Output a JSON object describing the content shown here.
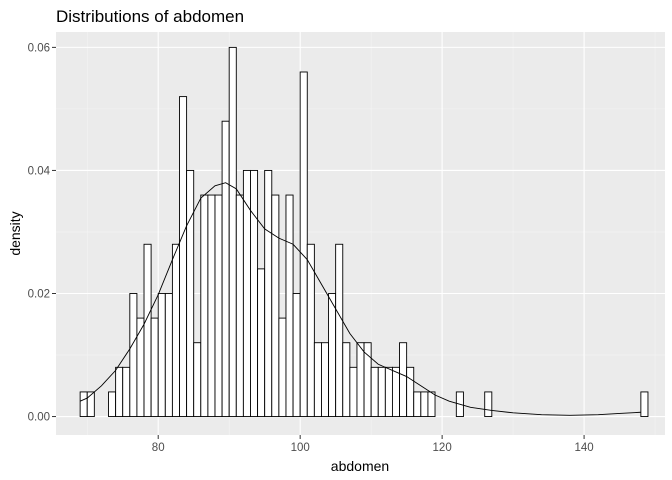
{
  "chart_data": {
    "type": "bar",
    "title": "Distributions of abdomen",
    "xlabel": "abdomen",
    "ylabel": "density",
    "xlim": [
      65.6,
      151.4
    ],
    "ylim": [
      -0.003,
      0.0625
    ],
    "x_ticks": [
      80,
      100,
      120,
      140
    ],
    "x_tick_labels": [
      "80",
      "100",
      "120",
      "140"
    ],
    "y_ticks": [
      0.0,
      0.02,
      0.04,
      0.06
    ],
    "y_tick_labels": [
      "0.00",
      "0.02",
      "0.04",
      "0.06"
    ],
    "binwidth": 1,
    "bin_edges_start": 69,
    "histogram": {
      "name": "density histogram",
      "bin_starts": [
        69,
        70,
        73,
        74,
        75,
        76,
        77,
        78,
        79,
        80,
        81,
        82,
        83,
        84,
        85,
        86,
        87,
        88,
        89,
        90,
        91,
        92,
        93,
        94,
        95,
        96,
        97,
        98,
        99,
        100,
        101,
        102,
        103,
        104,
        105,
        106,
        107,
        108,
        109,
        110,
        111,
        112,
        113,
        114,
        115,
        116,
        117,
        118,
        122,
        126,
        148
      ],
      "values": [
        0.004,
        0.004,
        0.004,
        0.008,
        0.008,
        0.02,
        0.016,
        0.028,
        0.016,
        0.02,
        0.02,
        0.028,
        0.052,
        0.04,
        0.012,
        0.036,
        0.036,
        0.036,
        0.048,
        0.06,
        0.036,
        0.04,
        0.04,
        0.024,
        0.04,
        0.036,
        0.016,
        0.036,
        0.02,
        0.056,
        0.028,
        0.012,
        0.012,
        0.02,
        0.028,
        0.012,
        0.008,
        0.012,
        0.012,
        0.008,
        0.008,
        0.008,
        0.008,
        0.012,
        0.008,
        0.004,
        0.004,
        0.004,
        0.004,
        0.004,
        0.004
      ]
    },
    "density_curve": {
      "name": "kernel density",
      "x": [
        69,
        70,
        72,
        74,
        76,
        78,
        80,
        82,
        84,
        86,
        88,
        89.5,
        91,
        93,
        95,
        97,
        99,
        101,
        103,
        105,
        107,
        109,
        111,
        113,
        115,
        117,
        119,
        121,
        124,
        127,
        130,
        134,
        138,
        142,
        145,
        148
      ],
      "y": [
        0.0025,
        0.003,
        0.005,
        0.0075,
        0.011,
        0.015,
        0.0198,
        0.0255,
        0.031,
        0.0355,
        0.0375,
        0.038,
        0.037,
        0.0335,
        0.0305,
        0.029,
        0.028,
        0.0255,
        0.0215,
        0.0175,
        0.0135,
        0.0105,
        0.0085,
        0.0075,
        0.0065,
        0.005,
        0.0035,
        0.0025,
        0.0015,
        0.001,
        0.0006,
        0.0003,
        0.0002,
        0.0003,
        0.0005,
        0.0007
      ]
    }
  }
}
